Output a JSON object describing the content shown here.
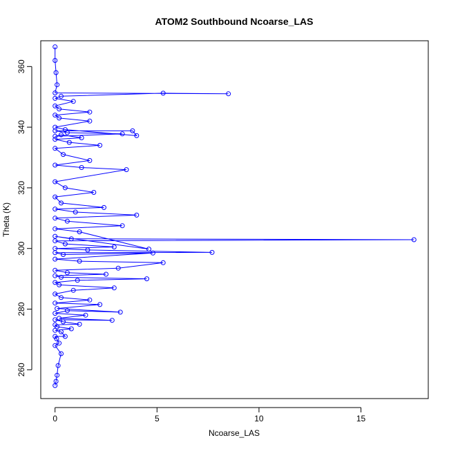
{
  "chart_data": {
    "type": "scatter",
    "title": "ATOM2 Southbound Ncoarse_LAS",
    "xlabel": "Ncoarse_LAS",
    "ylabel": "Theta (K)",
    "xlim": [
      -0.7,
      18.3
    ],
    "ylim": [
      250.5,
      368.5
    ],
    "x_ticks": [
      0,
      5,
      10,
      15
    ],
    "y_ticks": [
      260,
      280,
      300,
      320,
      340,
      360
    ],
    "x_tick_labels": [
      "0",
      "5",
      "10",
      "15"
    ],
    "y_tick_labels": [
      "260",
      "280",
      "300",
      "320",
      "340",
      "360"
    ],
    "grid": false,
    "legend": "none",
    "style": {
      "color": "#0000ff",
      "markers": "open circles",
      "connected": true
    },
    "series": [
      {
        "x": [
          0.0,
          0.05,
          0.1,
          0.15,
          0.3,
          0.0,
          0.2,
          0.08,
          0.0,
          0.5,
          0.3,
          0.0,
          0.8,
          0.1,
          0.0,
          1.2,
          0.4,
          0.0,
          2.8,
          0.2,
          1.5,
          0.0,
          0.6,
          3.2,
          0.1,
          2.2,
          0.0,
          1.7,
          0.3,
          0.0,
          0.9,
          2.9,
          0.2,
          0.0,
          1.1,
          4.5,
          0.3,
          0.0,
          2.5,
          0.6,
          0.0,
          3.1,
          5.3,
          1.2,
          0.0,
          4.8,
          0.4,
          0.0,
          7.7,
          1.6,
          0.0,
          2.9,
          0.5,
          0.0,
          17.6,
          0.8,
          0.0,
          4.6,
          1.2,
          0.0,
          3.3,
          0.6,
          0.0,
          4.0,
          1.0,
          0.0,
          2.4,
          0.3,
          0.0,
          1.9,
          0.5,
          0.0,
          3.5,
          1.3,
          0.0,
          1.7,
          0.4,
          0.0,
          2.2,
          0.7,
          0.0,
          1.3,
          0.3,
          0.0,
          3.3,
          0.6,
          0.0,
          3.8,
          4.0,
          0.5,
          0.0,
          1.7,
          0.2,
          0.0,
          1.7,
          0.2,
          0.0,
          0.9,
          0.0,
          0.3,
          5.3,
          8.5,
          0.0,
          0.1,
          0.05,
          0.0,
          0.0
        ],
        "y": [
          254.8,
          256.2,
          258.2,
          261.4,
          265.3,
          268.0,
          268.8,
          270.2,
          271.0,
          271.0,
          272.5,
          273.0,
          273.5,
          274.2,
          274.8,
          275.0,
          275.8,
          276.5,
          276.3,
          277.0,
          278.0,
          278.6,
          279.5,
          279.0,
          280.2,
          281.5,
          282.0,
          283.0,
          283.8,
          285.0,
          286.2,
          287.0,
          288.0,
          288.8,
          289.5,
          290.0,
          290.5,
          291.0,
          291.5,
          292.0,
          292.8,
          293.5,
          295.3,
          295.8,
          296.5,
          298.5,
          298.0,
          298.6,
          298.7,
          299.5,
          300.0,
          300.5,
          301.5,
          302.5,
          302.9,
          303.2,
          304.0,
          299.8,
          305.5,
          306.5,
          307.5,
          309.0,
          310.0,
          311.0,
          312.0,
          313.0,
          313.5,
          315.0,
          317.0,
          318.5,
          320.0,
          322.0,
          326.0,
          326.7,
          327.5,
          329.0,
          331.0,
          333.0,
          334.0,
          335.0,
          336.0,
          336.5,
          337.5,
          337.0,
          337.8,
          338.2,
          338.8,
          338.8,
          337.2,
          339.2,
          340.0,
          342.0,
          343.0,
          344.0,
          345.0,
          346.0,
          347.0,
          348.5,
          349.5,
          350.2,
          351.2,
          351.0,
          351.3,
          354.0,
          358.0,
          362.0,
          366.5
        ]
      }
    ]
  }
}
